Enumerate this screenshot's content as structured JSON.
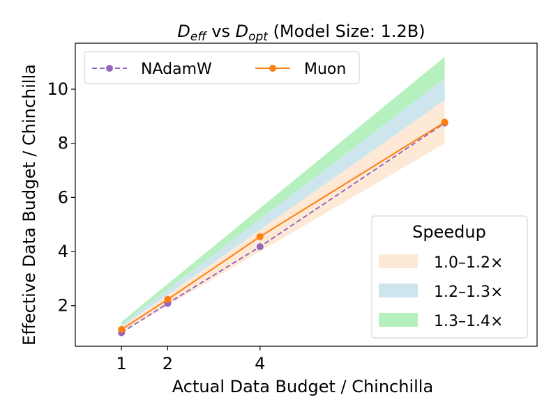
{
  "chart_data": {
    "type": "line",
    "title": "D_eff vs D_opt (Model Size: 1.2B)",
    "title_parts": {
      "d1_main": "D",
      "d1_sub": "eff",
      "vs": " vs ",
      "d2_main": "D",
      "d2_sub": "opt",
      "rest": " (Model Size: 1.2B)"
    },
    "xlabel": "Actual Data Budget / Chinchilla",
    "ylabel": "Effective Data Budget / Chinchilla",
    "xlim": [
      0.0,
      10.0
    ],
    "ylim": [
      0.5,
      11.7
    ],
    "xticks": [
      1,
      2,
      4
    ],
    "yticks": [
      2,
      4,
      6,
      8,
      10
    ],
    "grid": false,
    "series": [
      {
        "name": "NAdamW",
        "color": "#9467bd",
        "style": "dashed",
        "marker": "circle",
        "x": [
          1,
          2,
          4,
          8
        ],
        "y": [
          1.0,
          2.08,
          4.18,
          8.75
        ]
      },
      {
        "name": "Muon",
        "color": "#ff7f0e",
        "style": "solid",
        "marker": "circle",
        "x": [
          1,
          2,
          4,
          8
        ],
        "y": [
          1.12,
          2.23,
          4.55,
          8.78
        ]
      }
    ],
    "bands": [
      {
        "name": "1.0–1.2×",
        "color": "#fde9d6",
        "x": [
          1,
          8
        ],
        "low": [
          1.0,
          8.0
        ],
        "high": [
          1.2,
          9.6
        ]
      },
      {
        "name": "1.2–1.3×",
        "color": "#cde6ee",
        "x": [
          1,
          8
        ],
        "low": [
          1.2,
          9.6
        ],
        "high": [
          1.3,
          10.4
        ]
      },
      {
        "name": "1.3–1.4×",
        "color": "#b6f0be",
        "x": [
          1,
          8
        ],
        "low": [
          1.3,
          10.4
        ],
        "high": [
          1.4,
          11.2
        ]
      }
    ],
    "legend_lines_placement": "top-left",
    "legend_bands_placement": "bottom-right",
    "legend_bands_title": "Speedup"
  }
}
